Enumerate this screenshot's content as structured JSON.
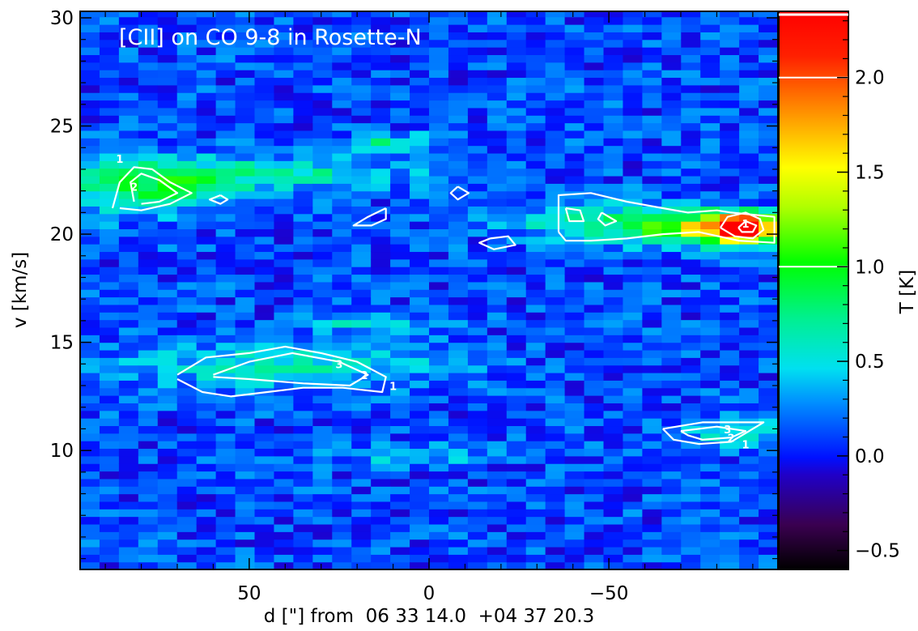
{
  "chart_data": {
    "type": "heatmap",
    "title": "[CII] on CO 9-8 in Rosette-N",
    "xlabel": "d [\"] from  06 33 14.0  +04 37 20.3",
    "ylabel": "v [km/s]",
    "colorbar_label": "T [K]",
    "xlim": [
      97,
      -97
    ],
    "ylim": [
      4.5,
      30.3
    ],
    "xticks": [
      50,
      0,
      -50
    ],
    "xtick_labels": [
      "50",
      "0",
      "−50"
    ],
    "yticks": [
      10,
      15,
      20,
      25,
      30
    ],
    "ytick_labels": [
      "10",
      "15",
      "20",
      "25",
      "30"
    ],
    "colorbar_range": [
      -0.6,
      2.35
    ],
    "colorbar_ticks": [
      -0.5,
      0.0,
      0.5,
      1.0,
      1.5,
      2.0
    ],
    "colorbar_tick_labels": [
      "−0.5",
      "0.0",
      "0.5",
      "1.0",
      "1.5",
      "2.0"
    ],
    "colorbar_contour_levels": [
      1.0,
      2.0
    ],
    "heatmap_features": [
      {
        "d": 80,
        "v": 22.3,
        "dv": 0.9,
        "dd": 18,
        "T": 0.75
      },
      {
        "d": 40,
        "v": 22.8,
        "dv": 0.5,
        "dd": 25,
        "T": 0.5
      },
      {
        "d": 10,
        "v": 24.2,
        "dv": 0.3,
        "dd": 10,
        "T": 0.55
      },
      {
        "d": -45,
        "v": 20.6,
        "dv": 0.7,
        "dd": 15,
        "T": 0.5
      },
      {
        "d": -75,
        "v": 20.3,
        "dv": 0.55,
        "dd": 12,
        "T": 1.2
      },
      {
        "d": -88,
        "v": 20.3,
        "dv": 0.45,
        "dd": 6,
        "T": 2.2
      },
      {
        "d": 40,
        "v": 13.9,
        "dv": 0.7,
        "dd": 30,
        "T": 0.45
      },
      {
        "d": 15,
        "v": 15.9,
        "dv": 0.3,
        "dd": 10,
        "T": 0.5
      },
      {
        "d": -85,
        "v": 10.8,
        "dv": 0.5,
        "dd": 12,
        "T": 0.35
      },
      {
        "d": 5,
        "v": 9.8,
        "dv": 0.3,
        "dd": 15,
        "T": 0.35
      }
    ],
    "contour_levels": [
      1,
      2,
      3
    ],
    "contours": [
      {
        "level": 1,
        "points": [
          [
            88,
            21.2
          ],
          [
            86,
            22.4
          ],
          [
            82,
            23.1
          ],
          [
            77,
            23.0
          ],
          [
            72,
            22.4
          ],
          [
            66,
            21.9
          ],
          [
            72,
            21.4
          ],
          [
            80,
            21.1
          ],
          [
            86,
            21.2
          ]
        ]
      },
      {
        "level": 2,
        "points": [
          [
            82,
            21.5
          ],
          [
            83,
            22.4
          ],
          [
            80,
            22.8
          ],
          [
            75,
            22.5
          ],
          [
            70,
            21.9
          ],
          [
            75,
            21.5
          ],
          [
            80,
            21.4
          ]
        ]
      },
      {
        "level": 1,
        "points": [
          [
            70,
            13.5
          ],
          [
            62,
            14.3
          ],
          [
            50,
            14.5
          ],
          [
            40,
            14.8
          ],
          [
            30,
            14.5
          ],
          [
            20,
            14.1
          ],
          [
            12,
            13.4
          ],
          [
            13,
            12.7
          ],
          [
            24,
            12.9
          ],
          [
            35,
            12.9
          ],
          [
            45,
            12.7
          ],
          [
            55,
            12.5
          ],
          [
            63,
            12.7
          ],
          [
            70,
            13.3
          ]
        ]
      },
      {
        "level": 2,
        "points": [
          [
            60,
            13.5
          ],
          [
            50,
            14.1
          ],
          [
            38,
            14.5
          ],
          [
            25,
            14.1
          ],
          [
            17,
            13.5
          ],
          [
            22,
            13.0
          ],
          [
            35,
            13.1
          ],
          [
            50,
            13.3
          ],
          [
            60,
            13.4
          ]
        ]
      },
      {
        "level": 1,
        "points": [
          [
            -36,
            20.1
          ],
          [
            -36,
            21.8
          ],
          [
            -45,
            21.9
          ],
          [
            -55,
            21.5
          ],
          [
            -65,
            21.2
          ],
          [
            -72,
            21.0
          ],
          [
            -80,
            21.1
          ],
          [
            -84,
            21.0
          ],
          [
            -96,
            20.8
          ],
          [
            -96,
            19.6
          ],
          [
            -86,
            19.7
          ],
          [
            -75,
            20.1
          ],
          [
            -65,
            20.0
          ],
          [
            -55,
            19.8
          ],
          [
            -45,
            19.7
          ],
          [
            -38,
            19.7
          ],
          [
            -36,
            20.1
          ]
        ]
      },
      {
        "level": 2,
        "points": [
          [
            -81,
            20.3
          ],
          [
            -83,
            20.8
          ],
          [
            -88,
            21.0
          ],
          [
            -92,
            20.7
          ],
          [
            -93,
            20.2
          ],
          [
            -90,
            19.8
          ],
          [
            -85,
            19.9
          ],
          [
            -81,
            20.3
          ]
        ]
      },
      {
        "level": 3,
        "points": [
          [
            -86,
            20.3
          ],
          [
            -88,
            20.6
          ],
          [
            -91,
            20.4
          ],
          [
            -90,
            20.1
          ],
          [
            -87,
            20.1
          ],
          [
            -86,
            20.3
          ]
        ]
      },
      {
        "level": 1,
        "points": [
          [
            -65,
            11.0
          ],
          [
            -76,
            11.3
          ],
          [
            -93,
            11.3
          ],
          [
            -89,
            10.9
          ],
          [
            -84,
            10.4
          ],
          [
            -75,
            10.3
          ],
          [
            -68,
            10.5
          ],
          [
            -65,
            11.0
          ]
        ]
      },
      {
        "level": 2,
        "points": [
          [
            -70,
            10.9
          ],
          [
            -80,
            11.1
          ],
          [
            -88,
            10.9
          ],
          [
            -84,
            10.6
          ],
          [
            -76,
            10.5
          ],
          [
            -72,
            10.7
          ],
          [
            -70,
            10.9
          ]
        ]
      },
      {
        "level": 1,
        "points": [
          [
            12,
            21.2
          ],
          [
            17,
            20.8
          ],
          [
            21,
            20.4
          ],
          [
            16,
            20.4
          ],
          [
            12,
            20.7
          ],
          [
            12,
            21.2
          ]
        ]
      },
      {
        "level": 1,
        "points": [
          [
            -8,
            22.2
          ],
          [
            -11,
            21.9
          ],
          [
            -8,
            21.6
          ],
          [
            -6,
            21.9
          ],
          [
            -8,
            22.2
          ]
        ]
      },
      {
        "level": 1,
        "points": [
          [
            -17,
            19.8
          ],
          [
            -22,
            19.9
          ],
          [
            -24,
            19.5
          ],
          [
            -18,
            19.3
          ],
          [
            -14,
            19.6
          ],
          [
            -17,
            19.8
          ]
        ]
      },
      {
        "level": 1,
        "points": [
          [
            -38,
            21.2
          ],
          [
            -42,
            21.1
          ],
          [
            -43,
            20.6
          ],
          [
            -39,
            20.6
          ],
          [
            -38,
            21.2
          ]
        ]
      },
      {
        "level": 1,
        "points": [
          [
            -48,
            21.0
          ],
          [
            -52,
            20.6
          ],
          [
            -49,
            20.4
          ],
          [
            -47,
            20.7
          ],
          [
            -48,
            21.0
          ]
        ]
      },
      {
        "level": 1,
        "points": [
          [
            58,
            21.8
          ],
          [
            61,
            21.6
          ],
          [
            58,
            21.4
          ],
          [
            56,
            21.6
          ],
          [
            58,
            21.8
          ]
        ]
      }
    ],
    "contour_labels": [
      {
        "text": "1",
        "d": 86,
        "v": 23.3
      },
      {
        "text": "2",
        "d": 82,
        "v": 22.0
      },
      {
        "text": "1",
        "d": 10,
        "v": 12.8
      },
      {
        "text": "2",
        "d": 18,
        "v": 13.3
      },
      {
        "text": "3",
        "d": 25,
        "v": 13.8
      },
      {
        "text": "1",
        "d": -88,
        "v": 20.3
      },
      {
        "text": "3",
        "d": -83,
        "v": 10.8
      },
      {
        "text": "2",
        "d": -84,
        "v": 10.4
      },
      {
        "text": "1",
        "d": -88,
        "v": 10.1
      }
    ]
  }
}
